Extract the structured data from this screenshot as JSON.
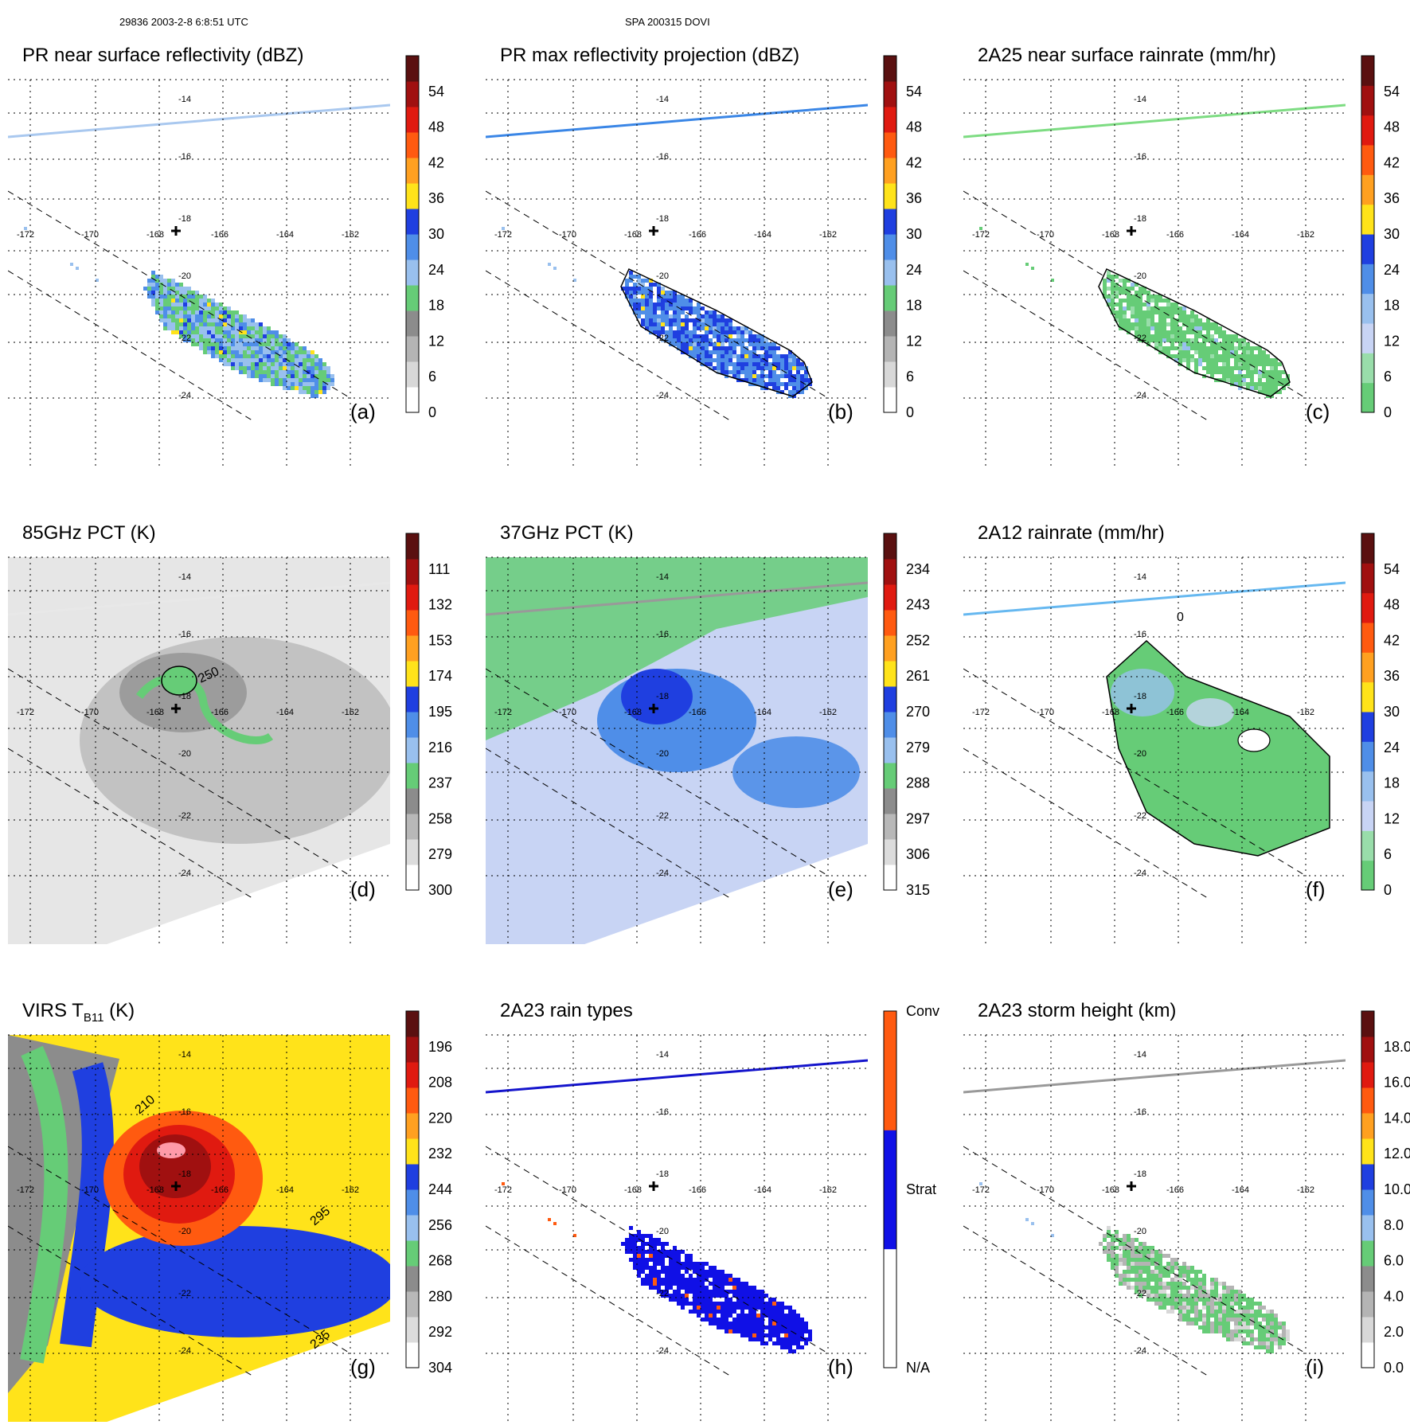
{
  "header": {
    "left": "29836 2003-2-8 6:8:51 UTC",
    "center": "SPA 200315 DOVI"
  },
  "chart_data": [
    {
      "type": "heatmap",
      "id": "a",
      "title": "PR near surface reflectivity (dBZ)",
      "label": "(a)",
      "colorbar_ticks": [
        "0",
        "6",
        "12",
        "18",
        "24",
        "30",
        "36",
        "42",
        "48",
        "54"
      ],
      "colors": [
        "#ffffff",
        "#d8d8d8",
        "#b4b4b4",
        "#8c8c8c",
        "#66cc77",
        "#99c0ee",
        "#4f8ee8",
        "#1f3fe0",
        "#ffe31a",
        "#ffa020",
        "#ff5a10",
        "#e01a10",
        "#a01010",
        "#5a1010"
      ],
      "swath_line_color": "#a9c8ef",
      "field": "pr",
      "lon_ticks": [
        "-172",
        "-170",
        "-168",
        "-166",
        "-164",
        "-162"
      ],
      "lat_ticks": [
        "-14",
        "-16",
        "-18",
        "-20",
        "-22",
        "-24"
      ]
    },
    {
      "type": "heatmap",
      "id": "b",
      "title": "PR max reflectivity projection (dBZ)",
      "label": "(b)",
      "colorbar_ticks": [
        "0",
        "6",
        "12",
        "18",
        "24",
        "30",
        "36",
        "42",
        "48",
        "54"
      ],
      "colors": [
        "#ffffff",
        "#d8d8d8",
        "#b4b4b4",
        "#8c8c8c",
        "#66cc77",
        "#99c0ee",
        "#4f8ee8",
        "#1f3fe0",
        "#ffe31a",
        "#ffa020",
        "#ff5a10",
        "#e01a10",
        "#a01010",
        "#5a1010"
      ],
      "swath_line_color": "#3a86e6",
      "field": "prmax",
      "lon_ticks": [
        "-172",
        "-170",
        "-168",
        "-166",
        "-164",
        "-162"
      ],
      "lat_ticks": [
        "-14",
        "-16",
        "-18",
        "-20",
        "-22",
        "-24"
      ]
    },
    {
      "type": "heatmap",
      "id": "c",
      "title": "2A25 near surface rainrate (mm/hr)",
      "label": "(c)",
      "colorbar_ticks": [
        "0",
        "6",
        "12",
        "18",
        "24",
        "30",
        "36",
        "42",
        "48",
        "54"
      ],
      "colors": [
        "#66cc77",
        "#99ddaa",
        "#c8d4f4",
        "#99c0ee",
        "#4f8ee8",
        "#1f3fe0",
        "#ffe31a",
        "#ffa020",
        "#ff5a10",
        "#e01a10",
        "#a01010",
        "#5a1010"
      ],
      "swath_line_color": "#7ddc82",
      "field": "rain",
      "lon_ticks": [
        "-172",
        "-170",
        "-168",
        "-166",
        "-164",
        "-162"
      ],
      "lat_ticks": [
        "-14",
        "-16",
        "-18",
        "-20",
        "-22",
        "-24"
      ]
    },
    {
      "type": "heatmap",
      "id": "d",
      "title": "85GHz PCT (K)",
      "label": "(d)",
      "colorbar_ticks": [
        "300",
        "279",
        "258",
        "237",
        "216",
        "195",
        "174",
        "153",
        "132",
        "111"
      ],
      "colors": [
        "#ffffff",
        "#dcdcdc",
        "#b8b8b8",
        "#8c8c8c",
        "#66cc77",
        "#99c0ee",
        "#4f8ee8",
        "#1f3fe0",
        "#ffe31a",
        "#ffa020",
        "#ff5a10",
        "#e01a10",
        "#a01010",
        "#5a1010"
      ],
      "swath_line_color": "#e8e8e8",
      "field": "pct85",
      "contour_label": "250",
      "lon_ticks": [
        "-172",
        "-170",
        "-168",
        "-166",
        "-164",
        "-162"
      ],
      "lat_ticks": [
        "-14",
        "-16",
        "-18",
        "-20",
        "-22",
        "-24"
      ]
    },
    {
      "type": "heatmap",
      "id": "e",
      "title": "37GHz PCT (K)",
      "label": "(e)",
      "colorbar_ticks": [
        "315",
        "306",
        "297",
        "288",
        "279",
        "270",
        "261",
        "252",
        "243",
        "234"
      ],
      "colors": [
        "#ffffff",
        "#dcdcdc",
        "#b8b8b8",
        "#8c8c8c",
        "#66cc77",
        "#99c0ee",
        "#4f8ee8",
        "#1f3fe0",
        "#ffe31a",
        "#ffa020",
        "#ff5a10",
        "#e01a10",
        "#a01010",
        "#5a1010"
      ],
      "swath_line_color": "#999999",
      "field": "pct37",
      "lon_ticks": [
        "-172",
        "-170",
        "-168",
        "-166",
        "-164",
        "-162"
      ],
      "lat_ticks": [
        "-14",
        "-16",
        "-18",
        "-20",
        "-22",
        "-24"
      ]
    },
    {
      "type": "heatmap",
      "id": "f",
      "title": "2A12 rainrate (mm/hr)",
      "label": "(f)",
      "colorbar_ticks": [
        "0",
        "6",
        "12",
        "18",
        "24",
        "30",
        "36",
        "42",
        "48",
        "54"
      ],
      "colors": [
        "#66cc77",
        "#99ddaa",
        "#c8d4f4",
        "#99c0ee",
        "#4f8ee8",
        "#1f3fe0",
        "#ffe31a",
        "#ffa020",
        "#ff5a10",
        "#e01a10",
        "#a01010",
        "#5a1010"
      ],
      "swath_line_color": "#66b8f0",
      "field": "tmirain",
      "contour_label": "0",
      "lon_ticks": [
        "-172",
        "-170",
        "-168",
        "-166",
        "-164",
        "-162"
      ],
      "lat_ticks": [
        "-14",
        "-16",
        "-18",
        "-20",
        "-22",
        "-24"
      ]
    },
    {
      "type": "heatmap",
      "id": "g",
      "title_main": "VIRS T",
      "title_sub": "B11",
      "title_tail": " (K)",
      "label": "(g)",
      "colorbar_ticks": [
        "304",
        "292",
        "280",
        "268",
        "256",
        "244",
        "232",
        "220",
        "208",
        "196"
      ],
      "colors": [
        "#ffffff",
        "#dcdcdc",
        "#b8b8b8",
        "#8c8c8c",
        "#66cc77",
        "#99c0ee",
        "#4f8ee8",
        "#1f3fe0",
        "#ffe31a",
        "#ffa020",
        "#ff5a10",
        "#e01a10",
        "#a01010",
        "#5a1010"
      ],
      "swath_line_color": "#ffffff",
      "field": "virs",
      "contour_labels": [
        "210",
        "295",
        "235"
      ],
      "lon_ticks": [
        "-172",
        "-170",
        "-168",
        "-166",
        "-164",
        "-162"
      ],
      "lat_ticks": [
        "-14",
        "-16",
        "-18",
        "-20",
        "-22",
        "-24"
      ]
    },
    {
      "type": "heatmap",
      "id": "h",
      "title": "2A23 rain types",
      "label": "(h)",
      "colorbar_ticks": [
        "N/A",
        "Strat",
        "Conv"
      ],
      "colors": [
        "#ffffff",
        "#1010e6",
        "#ff5a10"
      ],
      "swath_line_color": "#1414cc",
      "field": "types",
      "lon_ticks": [
        "-172",
        "-170",
        "-168",
        "-166",
        "-164",
        "-162"
      ],
      "lat_ticks": [
        "-14",
        "-16",
        "-18",
        "-20",
        "-22",
        "-24"
      ]
    },
    {
      "type": "heatmap",
      "id": "i",
      "title": "2A23 storm height (km)",
      "label": "(i)",
      "colorbar_ticks": [
        "0.0",
        "2.0",
        "4.0",
        "6.0",
        "8.0",
        "10.0",
        "12.0",
        "14.0",
        "16.0",
        "18.0"
      ],
      "colors": [
        "#ffffff",
        "#d8d8d8",
        "#b4b4b4",
        "#8c8c8c",
        "#66cc77",
        "#99c0ee",
        "#4f8ee8",
        "#1f3fe0",
        "#ffe31a",
        "#ffa020",
        "#ff5a10",
        "#e01a10",
        "#a01010",
        "#5a1010"
      ],
      "swath_line_color": "#999999",
      "field": "height",
      "lon_ticks": [
        "-172",
        "-170",
        "-168",
        "-166",
        "-164",
        "-162"
      ],
      "lat_ticks": [
        "-14",
        "-16",
        "-18",
        "-20",
        "-22",
        "-24"
      ]
    }
  ]
}
